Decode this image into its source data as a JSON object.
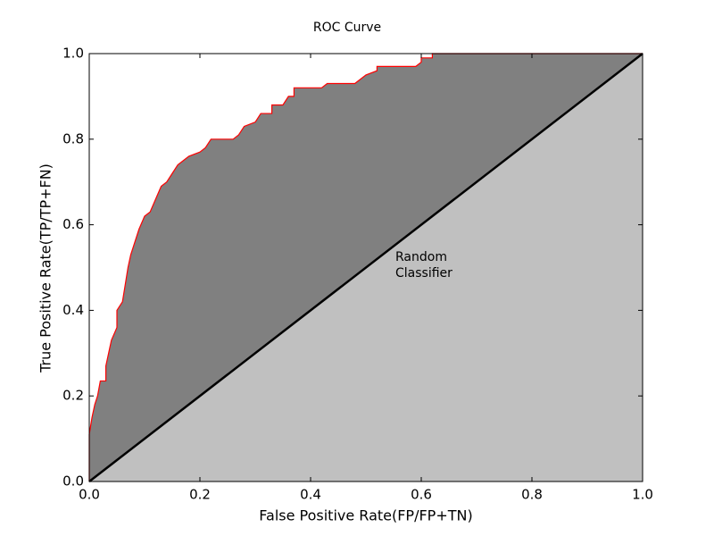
{
  "chart_data": {
    "type": "line",
    "title": "ROC Curve",
    "x_label": "False Positive Rate(FP/FP+TN)",
    "y_label": "True Positive Rate(TP/TP+FN)",
    "annotation": [
      "Random",
      "Classifier"
    ],
    "xlim": [
      0,
      1
    ],
    "ylim": [
      0,
      1
    ],
    "xticks": [
      {
        "value": 0,
        "label": "0.0"
      },
      0.2,
      0.4,
      0.6,
      0.8,
      {
        "value": 1,
        "label": "1.0"
      }
    ],
    "yticks": [
      {
        "value": 0,
        "label": "0.0"
      },
      0.2,
      0.4,
      0.6,
      0.8,
      {
        "value": 1,
        "label": "1.0"
      }
    ],
    "area_color": "#808080",
    "below_color": "#c0c0c0",
    "series": [
      {
        "color": "#ff0000",
        "x": [
          0,
          0,
          0.005,
          0.01,
          0.015,
          0.02,
          0.03,
          0.03,
          0.035,
          0.04,
          0.05,
          0.05,
          0.06,
          0.065,
          0.07,
          0.075,
          0.08,
          0.09,
          0.1,
          0.11,
          0.12,
          0.13,
          0.14,
          0.15,
          0.16,
          0.17,
          0.18,
          0.2,
          0.21,
          0.22,
          0.26,
          0.27,
          0.28,
          0.3,
          0.31,
          0.33,
          0.33,
          0.35,
          0.36,
          0.37,
          0.37,
          0.42,
          0.43,
          0.48,
          0.5,
          0.52,
          0.52,
          0.59,
          0.6,
          0.6,
          0.62,
          0.62,
          0.7,
          1
        ],
        "values": [
          0,
          0.11,
          0.15,
          0.18,
          0.2,
          0.235,
          0.235,
          0.27,
          0.3,
          0.33,
          0.36,
          0.4,
          0.42,
          0.46,
          0.5,
          0.53,
          0.55,
          0.59,
          0.62,
          0.63,
          0.66,
          0.69,
          0.7,
          0.72,
          0.74,
          0.75,
          0.76,
          0.77,
          0.78,
          0.8,
          0.8,
          0.81,
          0.83,
          0.84,
          0.86,
          0.86,
          0.88,
          0.88,
          0.9,
          0.9,
          0.92,
          0.92,
          0.93,
          0.93,
          0.95,
          0.96,
          0.97,
          0.97,
          0.98,
          0.99,
          0.99,
          1,
          1,
          1
        ]
      },
      {
        "color": "#000000",
        "x": [
          0,
          1
        ],
        "values": [
          0,
          1
        ]
      }
    ]
  }
}
